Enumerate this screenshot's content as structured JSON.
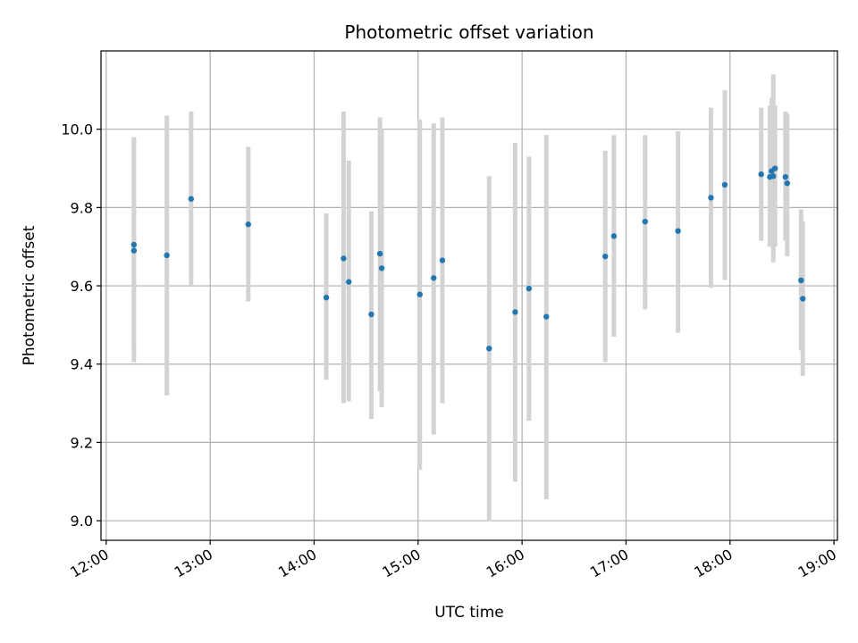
{
  "chart_data": {
    "type": "scatter",
    "title": "Photometric offset variation",
    "xlabel": "UTC time",
    "ylabel": "Photometric offset",
    "xlim": [
      "11:57",
      "19:02"
    ],
    "ylim": [
      8.95,
      10.2
    ],
    "x_ticks": [
      "12:00",
      "13:00",
      "14:00",
      "15:00",
      "16:00",
      "17:00",
      "18:00",
      "19:00"
    ],
    "y_ticks": [
      "9.0",
      "9.2",
      "9.4",
      "9.6",
      "9.8",
      "10.0"
    ],
    "grid": true,
    "colors": {
      "points": "#1f77b4",
      "errorbars": "#d3d3d3",
      "grid": "#b0b0b0"
    },
    "series": [
      {
        "x": [
          "12:16",
          "12:16",
          "12:35",
          "12:49",
          "13:22",
          "14:07",
          "14:17",
          "14:20",
          "14:33",
          "14:38",
          "14:39",
          "15:01",
          "15:09",
          "15:14",
          "15:41",
          "15:56",
          "16:04",
          "16:14",
          "16:48",
          "16:53",
          "17:11",
          "17:30",
          "17:49",
          "17:57",
          "18:18",
          "18:23",
          "18:24",
          "18:25",
          "18:26",
          "18:32",
          "18:33",
          "18:41",
          "18:42"
        ],
        "y": [
          9.705,
          9.69,
          9.678,
          9.822,
          9.757,
          9.57,
          9.67,
          9.61,
          9.527,
          9.682,
          9.645,
          9.578,
          9.62,
          9.665,
          9.44,
          9.533,
          9.593,
          9.521,
          9.675,
          9.727,
          9.764,
          9.74,
          9.825,
          9.858,
          9.885,
          9.878,
          9.893,
          9.88,
          9.9,
          9.878,
          9.862,
          9.614,
          9.567
        ],
        "err_low": [
          9.405,
          9.44,
          9.32,
          9.6,
          9.56,
          9.36,
          9.3,
          9.305,
          9.26,
          9.33,
          9.29,
          9.13,
          9.22,
          9.3,
          9.0,
          9.1,
          9.255,
          9.055,
          9.405,
          9.47,
          9.54,
          9.48,
          9.595,
          9.615,
          9.715,
          9.7,
          9.7,
          9.66,
          9.7,
          9.715,
          9.675,
          9.435,
          9.37
        ],
        "err_high": [
          9.975,
          9.98,
          10.035,
          10.045,
          9.955,
          9.785,
          10.045,
          9.92,
          9.79,
          10.03,
          10.0,
          10.025,
          10.015,
          10.03,
          9.88,
          9.965,
          9.93,
          9.985,
          9.945,
          9.985,
          9.985,
          9.995,
          10.055,
          10.1,
          10.055,
          10.06,
          10.08,
          10.14,
          10.06,
          10.045,
          10.04,
          9.795,
          9.765
        ]
      }
    ]
  }
}
